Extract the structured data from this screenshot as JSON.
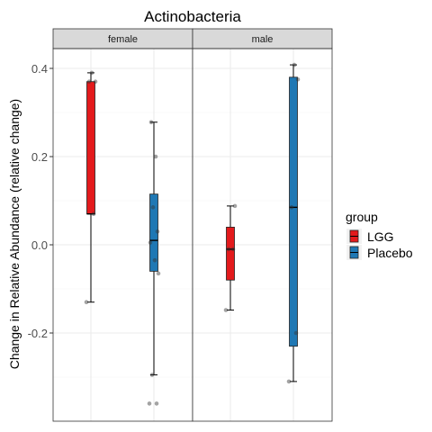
{
  "chart_data": {
    "type": "boxplot",
    "title": "Actinobacteria",
    "ylabel": "Change in Relative Abundance (relative change)",
    "xlabel": "",
    "ylim": [
      -0.4,
      0.5
    ],
    "yticks": [
      -0.2,
      0.0,
      0.2,
      0.4
    ],
    "ytick_labels": [
      "-0.2",
      "0.0",
      "0.2",
      "0.4"
    ],
    "grid": true,
    "legend": {
      "title": "group",
      "position": "right",
      "entries": [
        {
          "label": "LGG",
          "color": "#e31a1c"
        },
        {
          "label": "Placebo",
          "color": "#1f78b4"
        }
      ]
    },
    "facets": [
      {
        "label": "female",
        "boxes": [
          {
            "group": "LGG",
            "min": -0.13,
            "q1": 0.07,
            "median": 0.07,
            "q3": 0.37,
            "max": 0.39,
            "points": [
              -0.13,
              0.07,
              0.37,
              0.37,
              0.39
            ]
          },
          {
            "group": "Placebo",
            "min": -0.295,
            "q1": -0.06,
            "median": 0.01,
            "q3": 0.115,
            "max": 0.278,
            "points": [
              -0.36,
              -0.36,
              -0.295,
              -0.065,
              -0.035,
              0.005,
              0.03,
              0.085,
              0.2,
              0.278
            ]
          }
        ]
      },
      {
        "label": "male",
        "boxes": [
          {
            "group": "LGG",
            "min": -0.148,
            "q1": -0.08,
            "median": -0.01,
            "q3": 0.04,
            "max": 0.088,
            "points": [
              -0.148,
              -0.01,
              -0.01,
              0.088
            ]
          },
          {
            "group": "Placebo",
            "min": -0.31,
            "q1": -0.23,
            "median": 0.085,
            "q3": 0.38,
            "max": 0.408,
            "points": [
              -0.31,
              -0.2,
              0.085,
              0.375,
              0.408
            ]
          }
        ]
      }
    ]
  }
}
